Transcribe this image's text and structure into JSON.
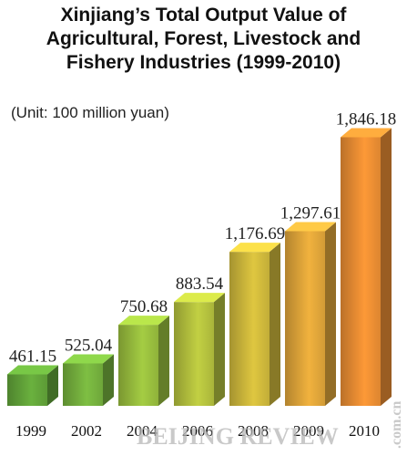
{
  "chart_data": {
    "type": "bar3d",
    "title": "Xinjiang’s Total Output Value of Agricultural, Forest, Livestock and Fishery Industries (1999-2010)",
    "subtitle": "(Unit: 100 million yuan)",
    "categories": [
      "1999",
      "2002",
      "2004",
      "2006",
      "2008",
      "2009",
      "2010"
    ],
    "values": [
      461.15,
      525.04,
      750.68,
      883.54,
      1176.69,
      1297.61,
      1846.18
    ],
    "value_labels": [
      "461.15",
      "525.04",
      "750.68",
      "883.54",
      "1,176.69",
      "1,297.61",
      "1,846.18"
    ],
    "colors": [
      "#5c9a36",
      "#6ea63a",
      "#8fb23a",
      "#a9b53a",
      "#c2ad38",
      "#d29b36",
      "#dc8530"
    ],
    "ylim": [
      0,
      2000
    ],
    "watermark": "BEIJING REVIEW",
    "watermark_domain": ".com.cn"
  }
}
